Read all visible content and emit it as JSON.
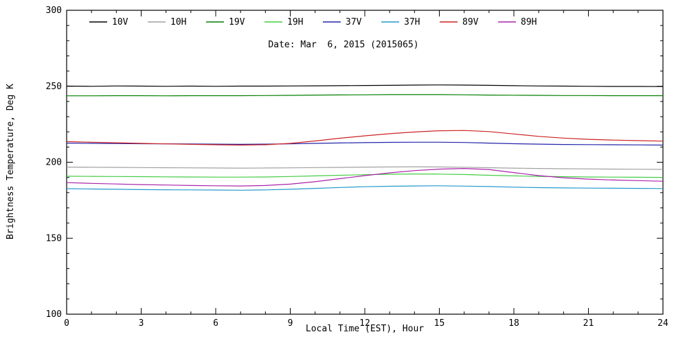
{
  "figure": {
    "title": "Date: Mar  6, 2015 (2015065)",
    "xlabel": "Local Time (EST), Hour",
    "ylabel": "Brightness Temperature, Deg K"
  },
  "chart_data": {
    "type": "line",
    "title": "Date: Mar  6, 2015 (2015065)",
    "xlabel": "Local Time (EST), Hour",
    "ylabel": "Brightness Temperature, Deg K",
    "xlim": [
      0,
      24
    ],
    "ylim": [
      100,
      300
    ],
    "x_ticks": [
      0,
      3,
      6,
      9,
      12,
      15,
      18,
      21,
      24
    ],
    "y_ticks": [
      100,
      150,
      200,
      250,
      300
    ],
    "x_minor_step": 1,
    "y_minor_step": 10,
    "grid": false,
    "legend_position": "top-inside",
    "x": [
      0,
      1,
      2,
      3,
      4,
      5,
      6,
      7,
      8,
      9,
      10,
      11,
      12,
      13,
      14,
      15,
      16,
      17,
      18,
      19,
      20,
      21,
      22,
      23,
      24
    ],
    "series": [
      {
        "name": "10V",
        "color": "#000000",
        "values": [
          250.1,
          250.0,
          250.2,
          250.1,
          250.0,
          250.1,
          250.0,
          250.1,
          250.1,
          250.2,
          250.3,
          250.4,
          250.5,
          250.6,
          250.8,
          250.9,
          250.8,
          250.6,
          250.4,
          250.2,
          250.1,
          250.0,
          249.9,
          249.9,
          249.8
        ]
      },
      {
        "name": "10H",
        "color": "#a0a0a0",
        "values": [
          196.8,
          196.7,
          196.6,
          196.5,
          196.4,
          196.3,
          196.2,
          196.1,
          196.2,
          196.3,
          196.5,
          196.6,
          196.8,
          196.9,
          197.0,
          196.9,
          196.7,
          196.4,
          196.1,
          195.9,
          195.7,
          195.6,
          195.5,
          195.4,
          195.3
        ]
      },
      {
        "name": "19V",
        "color": "#007f00",
        "values": [
          243.7,
          243.7,
          243.8,
          243.8,
          243.7,
          243.8,
          243.8,
          243.8,
          243.9,
          244.0,
          244.2,
          244.3,
          244.4,
          244.5,
          244.5,
          244.5,
          244.4,
          244.2,
          244.1,
          244.0,
          243.9,
          243.9,
          243.8,
          243.8,
          243.8
        ]
      },
      {
        "name": "19H",
        "color": "#44cc44",
        "values": [
          190.8,
          190.7,
          190.6,
          190.5,
          190.4,
          190.3,
          190.2,
          190.2,
          190.3,
          190.6,
          191.0,
          191.4,
          191.8,
          192.1,
          192.3,
          192.2,
          191.9,
          191.4,
          191.0,
          190.7,
          190.5,
          190.3,
          190.2,
          190.1,
          190.0
        ]
      },
      {
        "name": "37V",
        "color": "#2222aa",
        "values": [
          212.6,
          212.4,
          212.3,
          212.2,
          212.1,
          212.0,
          211.9,
          211.8,
          211.9,
          212.1,
          212.4,
          212.7,
          212.9,
          213.1,
          213.2,
          213.2,
          213.0,
          212.6,
          212.2,
          211.9,
          211.7,
          211.6,
          211.5,
          211.4,
          211.3
        ]
      },
      {
        "name": "37H",
        "color": "#2299cc",
        "values": [
          182.6,
          182.4,
          182.2,
          182.0,
          181.9,
          181.8,
          181.7,
          181.6,
          181.8,
          182.2,
          182.8,
          183.4,
          183.9,
          184.2,
          184.4,
          184.5,
          184.3,
          184.0,
          183.6,
          183.3,
          183.1,
          183.0,
          182.9,
          182.8,
          182.7
        ]
      },
      {
        "name": "89V",
        "color": "#cc2222",
        "values": [
          213.6,
          213.2,
          212.8,
          212.4,
          212.1,
          211.8,
          211.5,
          211.3,
          211.5,
          212.4,
          214.0,
          215.8,
          217.4,
          218.8,
          219.9,
          220.7,
          220.9,
          220.2,
          218.6,
          217.0,
          215.9,
          215.1,
          214.6,
          214.2,
          213.9
        ]
      },
      {
        "name": "89H",
        "color": "#aa22aa",
        "values": [
          186.6,
          186.1,
          185.7,
          185.3,
          185.0,
          184.7,
          184.5,
          184.4,
          184.7,
          185.6,
          187.2,
          189.2,
          191.2,
          193.0,
          194.5,
          195.5,
          195.9,
          195.2,
          193.2,
          191.2,
          189.8,
          188.9,
          188.3,
          187.9,
          187.5
        ]
      }
    ]
  }
}
